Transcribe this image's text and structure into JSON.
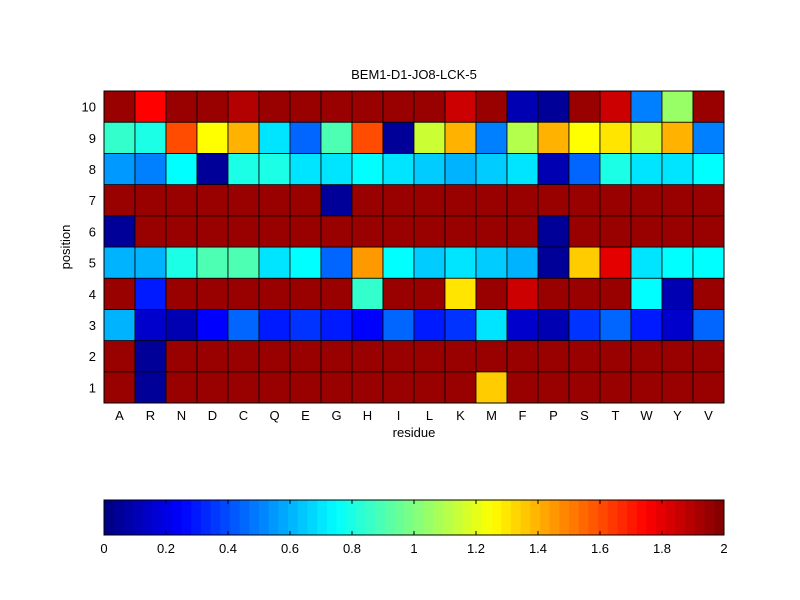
{
  "chart_data": {
    "type": "heatmap",
    "title": "BEM1-D1-JO8-LCK-5",
    "xlabel": "residue",
    "ylabel": "position",
    "x_categories": [
      "A",
      "R",
      "N",
      "D",
      "C",
      "Q",
      "E",
      "G",
      "H",
      "I",
      "L",
      "K",
      "M",
      "F",
      "P",
      "S",
      "T",
      "W",
      "Y",
      "V"
    ],
    "y_categories": [
      "1",
      "2",
      "3",
      "4",
      "5",
      "6",
      "7",
      "8",
      "9",
      "10"
    ],
    "colorscale": "jet",
    "clim": [
      0,
      2
    ],
    "values": [
      [
        1.95,
        0.05,
        1.95,
        1.95,
        1.95,
        1.95,
        1.95,
        1.95,
        1.95,
        1.95,
        1.95,
        1.95,
        1.35,
        1.95,
        1.95,
        1.95,
        1.95,
        1.95,
        1.95,
        1.95
      ],
      [
        1.95,
        0.05,
        1.95,
        1.95,
        1.95,
        1.95,
        1.95,
        1.95,
        1.95,
        1.95,
        1.95,
        1.95,
        1.95,
        1.95,
        1.95,
        1.95,
        1.95,
        1.95,
        1.95,
        1.95
      ],
      [
        0.6,
        0.15,
        0.1,
        0.25,
        0.45,
        0.3,
        0.35,
        0.3,
        0.25,
        0.45,
        0.3,
        0.35,
        0.7,
        0.15,
        0.1,
        0.35,
        0.45,
        0.3,
        0.15,
        0.45
      ],
      [
        1.95,
        0.3,
        1.95,
        1.95,
        1.95,
        1.95,
        1.95,
        1.95,
        0.85,
        1.95,
        1.95,
        1.3,
        1.95,
        1.85,
        1.95,
        1.95,
        1.95,
        0.75,
        0.1,
        1.95
      ],
      [
        0.6,
        0.6,
        0.8,
        0.9,
        0.9,
        0.7,
        0.75,
        0.45,
        1.45,
        0.75,
        0.65,
        0.7,
        0.65,
        0.6,
        0.05,
        1.35,
        1.8,
        0.7,
        0.75,
        0.75
      ],
      [
        0.05,
        1.95,
        1.95,
        1.95,
        1.95,
        1.95,
        1.95,
        1.95,
        1.95,
        1.95,
        1.95,
        1.95,
        1.95,
        1.95,
        0.05,
        1.95,
        1.95,
        1.95,
        1.95,
        1.95
      ],
      [
        1.95,
        1.95,
        1.95,
        1.95,
        1.95,
        1.95,
        1.95,
        0.05,
        1.95,
        1.95,
        1.95,
        1.95,
        1.95,
        1.95,
        1.95,
        1.95,
        1.95,
        1.95,
        1.95,
        1.95
      ],
      [
        0.55,
        0.5,
        0.75,
        0.05,
        0.8,
        0.8,
        0.7,
        0.7,
        0.75,
        0.7,
        0.65,
        0.6,
        0.65,
        0.7,
        0.1,
        0.45,
        0.8,
        0.7,
        0.7,
        0.75
      ],
      [
        0.85,
        0.8,
        1.6,
        1.25,
        1.4,
        0.7,
        0.45,
        0.9,
        1.6,
        0.05,
        1.15,
        1.4,
        0.5,
        1.1,
        1.4,
        1.25,
        1.3,
        1.15,
        1.4,
        0.5
      ],
      [
        1.95,
        1.75,
        1.95,
        1.95,
        1.9,
        1.95,
        1.95,
        1.95,
        1.95,
        1.95,
        1.95,
        1.85,
        1.95,
        0.1,
        0.05,
        1.95,
        1.85,
        0.5,
        1.05,
        1.95
      ]
    ],
    "colorbar_ticks": [
      "0",
      "0.2",
      "0.4",
      "0.6",
      "0.8",
      "1",
      "1.2",
      "1.4",
      "1.6",
      "1.8",
      "2"
    ],
    "colorbar_orientation": "horizontal",
    "colorbar_placement": "bottom"
  }
}
